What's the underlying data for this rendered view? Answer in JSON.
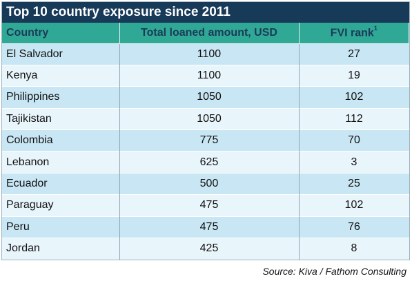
{
  "title": "Top 10 country exposure since 2011",
  "columns": {
    "country": "Country",
    "amount": "Total loaned amount, USD",
    "fvi": "FVI rank",
    "fvi_footnote": "1"
  },
  "rows": [
    {
      "country": "El Salvador",
      "amount": "1100",
      "fvi": "27"
    },
    {
      "country": "Kenya",
      "amount": "1100",
      "fvi": "19"
    },
    {
      "country": "Philippines",
      "amount": "1050",
      "fvi": "102"
    },
    {
      "country": "Tajikistan",
      "amount": "1050",
      "fvi": "112"
    },
    {
      "country": "Colombia",
      "amount": "775",
      "fvi": "70"
    },
    {
      "country": "Lebanon",
      "amount": "625",
      "fvi": "3"
    },
    {
      "country": "Ecuador",
      "amount": "500",
      "fvi": "25"
    },
    {
      "country": "Paraguay",
      "amount": "475",
      "fvi": "102"
    },
    {
      "country": "Peru",
      "amount": "475",
      "fvi": "76"
    },
    {
      "country": "Jordan",
      "amount": "425",
      "fvi": "8"
    }
  ],
  "source": "Source: Kiva / Fathom Consulting",
  "colors": {
    "title_bg": "#183a59",
    "header_bg": "#2fa996",
    "header_text": "#1c3a56",
    "row_dark": "#c8e6f3",
    "row_light": "#e8f5fb"
  }
}
